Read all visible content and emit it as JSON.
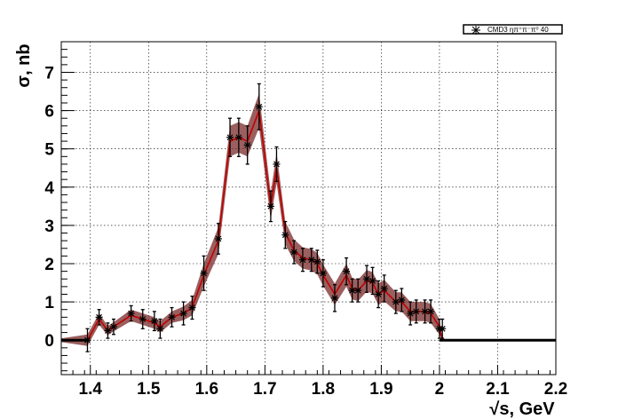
{
  "chart_data": {
    "type": "line",
    "xlabel": "√s, GeV",
    "ylabel": "σ, nb",
    "xlim": [
      1.35,
      2.2
    ],
    "ylim": [
      -0.9,
      7.8
    ],
    "x_ticks": [
      "1.4",
      "1.5",
      "1.6",
      "1.7",
      "1.8",
      "1.9",
      "2",
      "2.1",
      "2.2"
    ],
    "y_ticks": [
      "0",
      "1",
      "2",
      "3",
      "4",
      "5",
      "6",
      "7"
    ],
    "grid": true,
    "legend_position": "top-right",
    "series": [
      {
        "name": "CMD3 ηπ⁺π⁻π⁰ 40",
        "x": [
          1.395,
          1.415,
          1.43,
          1.44,
          1.47,
          1.49,
          1.51,
          1.52,
          1.54,
          1.56,
          1.575,
          1.595,
          1.62,
          1.64,
          1.655,
          1.67,
          1.69,
          1.71,
          1.72,
          1.735,
          1.75,
          1.765,
          1.78,
          1.79,
          1.8,
          1.82,
          1.84,
          1.85,
          1.86,
          1.875,
          1.885,
          1.895,
          1.905,
          1.925,
          1.935,
          1.95,
          1.96,
          1.975,
          1.985,
          2.0,
          2.005
        ],
        "y": [
          0.0,
          0.6,
          0.25,
          0.35,
          0.7,
          0.55,
          0.5,
          0.3,
          0.6,
          0.7,
          0.85,
          1.75,
          2.65,
          5.3,
          5.3,
          5.1,
          6.1,
          3.5,
          4.6,
          2.75,
          2.3,
          2.1,
          2.1,
          2.05,
          1.75,
          1.1,
          1.8,
          1.3,
          1.3,
          1.6,
          1.55,
          1.2,
          1.35,
          1.0,
          1.05,
          0.7,
          0.75,
          0.75,
          0.75,
          0.3,
          0.3
        ],
        "yerr": [
          0.3,
          0.2,
          0.2,
          0.2,
          0.2,
          0.25,
          0.25,
          0.25,
          0.25,
          0.3,
          0.3,
          0.45,
          0.4,
          0.5,
          0.5,
          0.5,
          0.6,
          0.4,
          0.45,
          0.35,
          0.3,
          0.3,
          0.3,
          0.3,
          0.35,
          0.35,
          0.35,
          0.3,
          0.3,
          0.35,
          0.35,
          0.35,
          0.35,
          0.3,
          0.3,
          0.3,
          0.3,
          0.3,
          0.3,
          0.25,
          0.25
        ]
      }
    ],
    "fit_curve": {
      "x": [
        1.35,
        1.395,
        1.415,
        1.43,
        1.44,
        1.47,
        1.49,
        1.51,
        1.52,
        1.54,
        1.56,
        1.575,
        1.595,
        1.62,
        1.64,
        1.655,
        1.67,
        1.69,
        1.71,
        1.72,
        1.735,
        1.75,
        1.765,
        1.78,
        1.79,
        1.8,
        1.82,
        1.84,
        1.85,
        1.86,
        1.875,
        1.885,
        1.895,
        1.905,
        1.925,
        1.935,
        1.95,
        1.96,
        1.975,
        1.985,
        2.0,
        2.005,
        2.2
      ],
      "y": [
        0.0,
        0.0,
        0.55,
        0.25,
        0.35,
        0.65,
        0.55,
        0.45,
        0.35,
        0.6,
        0.7,
        0.85,
        1.7,
        2.6,
        5.2,
        5.3,
        5.2,
        6.0,
        3.5,
        4.5,
        2.8,
        2.35,
        2.15,
        2.1,
        2.0,
        1.7,
        1.2,
        1.7,
        1.35,
        1.3,
        1.55,
        1.5,
        1.2,
        1.3,
        1.0,
        1.0,
        0.75,
        0.75,
        0.75,
        0.7,
        0.35,
        0.0,
        0.0
      ],
      "band": [
        0.05,
        0.15,
        0.15,
        0.12,
        0.12,
        0.15,
        0.15,
        0.15,
        0.15,
        0.15,
        0.18,
        0.2,
        0.3,
        0.35,
        0.4,
        0.4,
        0.4,
        0.45,
        0.35,
        0.4,
        0.3,
        0.28,
        0.28,
        0.28,
        0.28,
        0.28,
        0.28,
        0.3,
        0.28,
        0.28,
        0.28,
        0.28,
        0.28,
        0.28,
        0.25,
        0.25,
        0.25,
        0.25,
        0.25,
        0.25,
        0.2,
        0.0,
        0.0
      ]
    },
    "colors": {
      "band": "#7a2a2a",
      "fit": "#c00000",
      "data": "#000000"
    }
  }
}
